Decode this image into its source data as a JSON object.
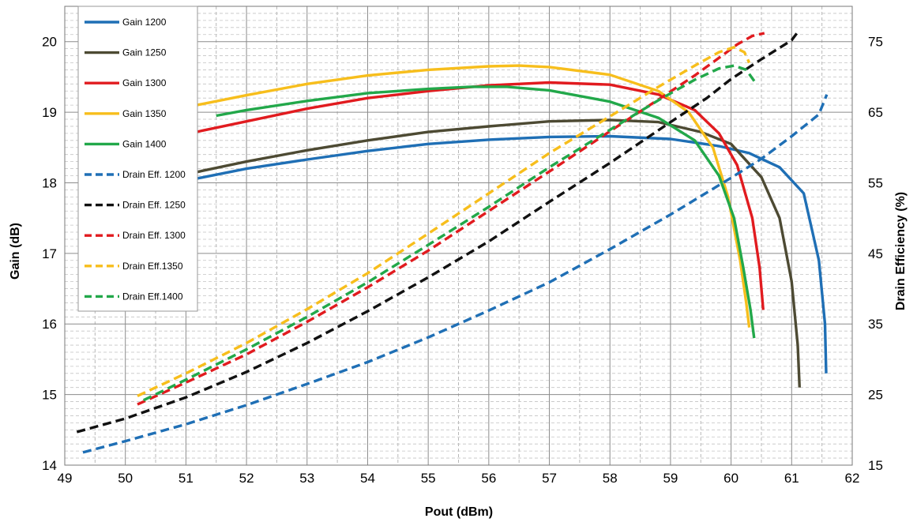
{
  "chart_data": {
    "type": "line",
    "title": "",
    "xlabel": "Pout (dBm)",
    "ylabel": "Gain (dB)",
    "y2label": "Drain Efficiency (%)",
    "xlim": [
      49,
      62
    ],
    "ylim": [
      14,
      20.5
    ],
    "y2lim": [
      15,
      80
    ],
    "xticks": [
      49,
      50,
      51,
      52,
      53,
      54,
      55,
      56,
      57,
      58,
      59,
      60,
      61,
      62
    ],
    "yticks": [
      14,
      15,
      16,
      17,
      18,
      19,
      20
    ],
    "y2ticks": [
      15,
      25,
      35,
      45,
      55,
      65,
      75
    ],
    "grid": true,
    "minor_grid": "dashed",
    "legend_position": "top-left",
    "series": [
      {
        "name": "Gain 1200",
        "axis": "left",
        "color": "#1f6fb5",
        "dash": "solid",
        "points": [
          [
            51.0,
            18.03
          ],
          [
            52.0,
            18.2
          ],
          [
            53.0,
            18.33
          ],
          [
            54.0,
            18.45
          ],
          [
            55.0,
            18.55
          ],
          [
            56.0,
            18.61
          ],
          [
            57.0,
            18.65
          ],
          [
            58.0,
            18.66
          ],
          [
            59.0,
            18.62
          ],
          [
            59.8,
            18.52
          ],
          [
            60.3,
            18.42
          ],
          [
            60.8,
            18.22
          ],
          [
            61.2,
            17.85
          ],
          [
            61.45,
            16.9
          ],
          [
            61.55,
            16.0
          ],
          [
            61.57,
            15.3
          ]
        ]
      },
      {
        "name": "Gain 1250",
        "axis": "left",
        "color": "#4d4a33",
        "dash": "solid",
        "points": [
          [
            51.0,
            18.12
          ],
          [
            52.0,
            18.3
          ],
          [
            53.0,
            18.46
          ],
          [
            54.0,
            18.6
          ],
          [
            55.0,
            18.72
          ],
          [
            56.0,
            18.8
          ],
          [
            57.0,
            18.87
          ],
          [
            58.0,
            18.89
          ],
          [
            58.8,
            18.86
          ],
          [
            59.5,
            18.72
          ],
          [
            60.0,
            18.55
          ],
          [
            60.5,
            18.08
          ],
          [
            60.8,
            17.5
          ],
          [
            61.0,
            16.6
          ],
          [
            61.1,
            15.7
          ],
          [
            61.13,
            15.1
          ]
        ]
      },
      {
        "name": "Gain 1300",
        "axis": "left",
        "color": "#e11b1f",
        "dash": "solid",
        "points": [
          [
            51.0,
            18.69
          ],
          [
            52.0,
            18.87
          ],
          [
            53.0,
            19.05
          ],
          [
            54.0,
            19.2
          ],
          [
            55.0,
            19.3
          ],
          [
            56.0,
            19.38
          ],
          [
            57.0,
            19.42
          ],
          [
            58.0,
            19.39
          ],
          [
            58.8,
            19.25
          ],
          [
            59.4,
            19.03
          ],
          [
            59.8,
            18.7
          ],
          [
            60.1,
            18.25
          ],
          [
            60.35,
            17.5
          ],
          [
            60.47,
            16.8
          ],
          [
            60.53,
            16.2
          ]
        ]
      },
      {
        "name": "Gain 1350",
        "axis": "left",
        "color": "#f7be1c",
        "dash": "solid",
        "points": [
          [
            51.0,
            19.07
          ],
          [
            52.0,
            19.24
          ],
          [
            53.0,
            19.4
          ],
          [
            54.0,
            19.52
          ],
          [
            55.0,
            19.6
          ],
          [
            56.0,
            19.65
          ],
          [
            56.5,
            19.66
          ],
          [
            57.0,
            19.64
          ],
          [
            58.0,
            19.53
          ],
          [
            58.8,
            19.3
          ],
          [
            59.3,
            19.0
          ],
          [
            59.7,
            18.5
          ],
          [
            59.95,
            17.8
          ],
          [
            60.15,
            16.9
          ],
          [
            60.25,
            16.3
          ],
          [
            60.3,
            15.95
          ]
        ]
      },
      {
        "name": "Gain 1400",
        "axis": "left",
        "color": "#22a84a",
        "dash": "solid",
        "points": [
          [
            51.5,
            18.95
          ],
          [
            52.0,
            19.03
          ],
          [
            53.0,
            19.16
          ],
          [
            54.0,
            19.27
          ],
          [
            55.0,
            19.33
          ],
          [
            55.7,
            19.36
          ],
          [
            56.3,
            19.36
          ],
          [
            57.0,
            19.31
          ],
          [
            58.0,
            19.15
          ],
          [
            58.8,
            18.92
          ],
          [
            59.4,
            18.6
          ],
          [
            59.8,
            18.1
          ],
          [
            60.05,
            17.5
          ],
          [
            60.2,
            16.8
          ],
          [
            60.32,
            16.2
          ],
          [
            60.38,
            15.8
          ]
        ]
      },
      {
        "name": "Drain Eff. 1200",
        "axis": "right",
        "color": "#1f6fb5",
        "dash": "dashed",
        "points": [
          [
            49.3,
            16.8
          ],
          [
            50.0,
            18.4
          ],
          [
            51.0,
            20.8
          ],
          [
            52.0,
            23.5
          ],
          [
            53.0,
            26.5
          ],
          [
            54.0,
            29.6
          ],
          [
            55.0,
            33.1
          ],
          [
            56.0,
            36.9
          ],
          [
            57.0,
            40.9
          ],
          [
            58.0,
            45.6
          ],
          [
            59.0,
            50.5
          ],
          [
            60.0,
            55.7
          ],
          [
            60.5,
            58.4
          ],
          [
            61.0,
            61.6
          ],
          [
            61.45,
            64.7
          ],
          [
            61.58,
            67.5
          ]
        ]
      },
      {
        "name": "Drain Eff. 1250",
        "axis": "right",
        "color": "#111111",
        "dash": "dashed",
        "points": [
          [
            49.2,
            19.7
          ],
          [
            50.0,
            21.6
          ],
          [
            51.0,
            24.6
          ],
          [
            52.0,
            28.2
          ],
          [
            53.0,
            32.3
          ],
          [
            54.0,
            36.8
          ],
          [
            55.0,
            41.6
          ],
          [
            56.0,
            46.7
          ],
          [
            57.0,
            52.3
          ],
          [
            58.0,
            57.8
          ],
          [
            59.0,
            63.6
          ],
          [
            59.6,
            67.0
          ],
          [
            60.0,
            69.7
          ],
          [
            60.5,
            72.5
          ],
          [
            61.0,
            75.2
          ],
          [
            61.13,
            76.7
          ]
        ]
      },
      {
        "name": "Drain Eff. 1300",
        "axis": "right",
        "color": "#e11b1f",
        "dash": "dashed",
        "points": [
          [
            50.2,
            23.6
          ],
          [
            51.0,
            26.7
          ],
          [
            52.0,
            30.7
          ],
          [
            53.0,
            35.3
          ],
          [
            54.0,
            40.2
          ],
          [
            55.0,
            45.4
          ],
          [
            56.0,
            51.0
          ],
          [
            57.0,
            56.6
          ],
          [
            58.0,
            62.3
          ],
          [
            58.8,
            66.8
          ],
          [
            59.4,
            70.2
          ],
          [
            59.8,
            72.7
          ],
          [
            60.1,
            74.6
          ],
          [
            60.35,
            75.8
          ],
          [
            60.55,
            76.2
          ]
        ]
      },
      {
        "name": "Drain Eff.1350",
        "axis": "right",
        "color": "#f7be1c",
        "dash": "dashed",
        "points": [
          [
            50.2,
            24.8
          ],
          [
            51.0,
            28.0
          ],
          [
            52.0,
            32.3
          ],
          [
            53.0,
            37.1
          ],
          [
            54.0,
            42.2
          ],
          [
            55.0,
            47.8
          ],
          [
            56.0,
            53.5
          ],
          [
            57.0,
            59.2
          ],
          [
            58.0,
            64.4
          ],
          [
            58.8,
            68.6
          ],
          [
            59.4,
            71.6
          ],
          [
            59.8,
            73.5
          ],
          [
            60.05,
            74.2
          ],
          [
            60.22,
            73.5
          ],
          [
            60.3,
            72.0
          ]
        ]
      },
      {
        "name": "Drain Eff.1400",
        "axis": "right",
        "color": "#22a84a",
        "dash": "dashed",
        "points": [
          [
            50.3,
            24.2
          ],
          [
            51.0,
            27.1
          ],
          [
            52.0,
            31.4
          ],
          [
            53.0,
            36.0
          ],
          [
            54.0,
            40.9
          ],
          [
            55.0,
            46.2
          ],
          [
            56.0,
            51.6
          ],
          [
            57.0,
            57.2
          ],
          [
            58.0,
            62.5
          ],
          [
            58.8,
            66.7
          ],
          [
            59.4,
            69.6
          ],
          [
            59.8,
            71.2
          ],
          [
            60.05,
            71.6
          ],
          [
            60.25,
            71.0
          ],
          [
            60.4,
            69.2
          ]
        ]
      }
    ]
  }
}
